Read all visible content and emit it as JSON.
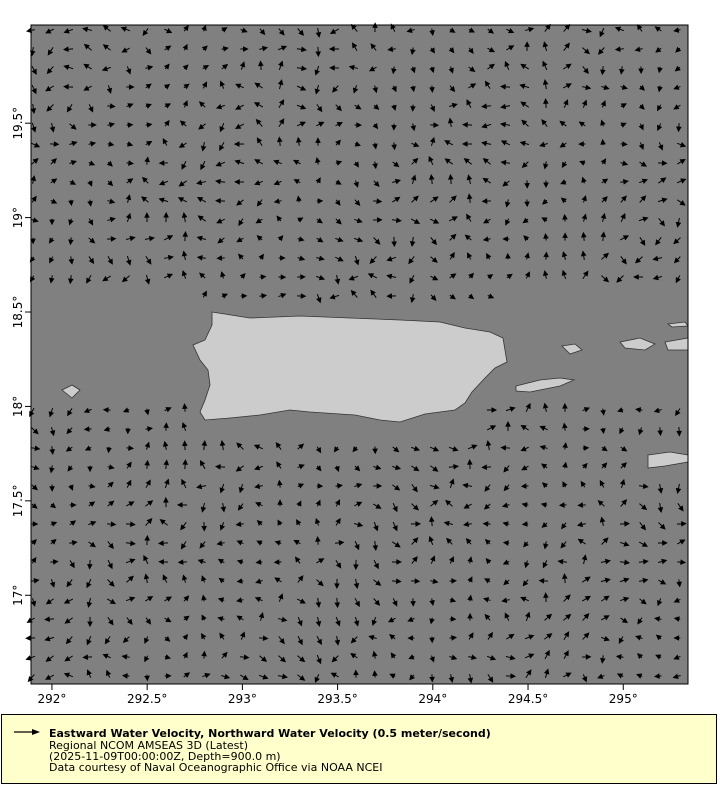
{
  "map": {
    "colors": {
      "water": "#808080",
      "land": "#cccccc",
      "coast": "#333333",
      "arrow": "#000000",
      "legend_bg": "#ffffcc"
    },
    "x_ticks": [
      {
        "value": 292,
        "label": "292°"
      },
      {
        "value": 292.5,
        "label": "292.5°"
      },
      {
        "value": 293,
        "label": "293°"
      },
      {
        "value": 293.5,
        "label": "293.5°"
      },
      {
        "value": 294,
        "label": "294°"
      },
      {
        "value": 294.5,
        "label": "294.5°"
      },
      {
        "value": 295,
        "label": "295°"
      }
    ],
    "y_ticks": [
      {
        "value": 19.5,
        "label": "19.5°"
      },
      {
        "value": 19,
        "label": "19°"
      },
      {
        "value": 18.5,
        "label": "18.5°"
      },
      {
        "value": 18,
        "label": "18°"
      },
      {
        "value": 17.5,
        "label": "17.5°"
      },
      {
        "value": 17,
        "label": "17°"
      }
    ],
    "lon_range": [
      291.89,
      295.34
    ],
    "lat_range": [
      16.53,
      20.02
    ]
  },
  "legend": {
    "icon": "arrow-icon",
    "title": "Eastward Water Velocity, Northward Water Velocity (0.5 meter/second)",
    "line2": "Regional NCOM AMSEAS 3D (Latest)",
    "line3": "(2025-11-09T00:00:00Z, Depth=900.0 m)",
    "line4": "Data courtesy of Naval Oceanographic Office via NOAA NCEI"
  }
}
